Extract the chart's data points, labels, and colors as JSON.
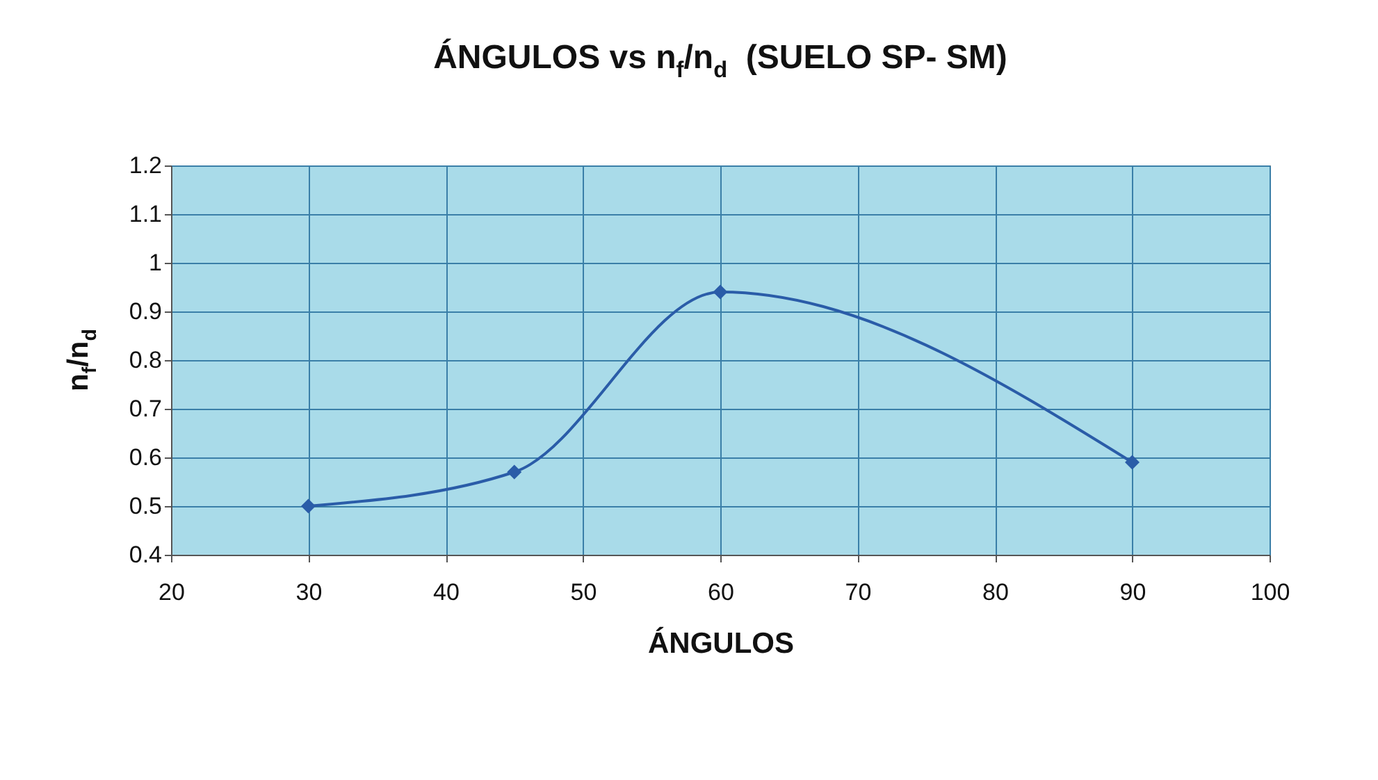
{
  "chart_data": {
    "type": "line",
    "title": "ÁNGULOS vs n$_{f}$/n$_{d}$  (SUELO SP- SM)",
    "xlabel": "ÁNGULOS",
    "ylabel": "n$_{f}$/n$_{d}$",
    "x": [
      30,
      45,
      60,
      90
    ],
    "series": [
      {
        "color": "#2a5ca8",
        "values": [
          0.5,
          0.57,
          0.94,
          0.59
        ]
      }
    ],
    "xlim": [
      20,
      100
    ],
    "xticks": [
      20,
      30,
      40,
      50,
      60,
      70,
      80,
      90,
      100
    ],
    "ylim": [
      0.4,
      1.2
    ],
    "yticks": [
      0.4,
      0.5,
      0.6,
      0.7,
      0.8,
      0.9,
      1,
      1.1,
      1.2
    ],
    "grid": true,
    "marker": "diamond",
    "line_style": "solid"
  }
}
